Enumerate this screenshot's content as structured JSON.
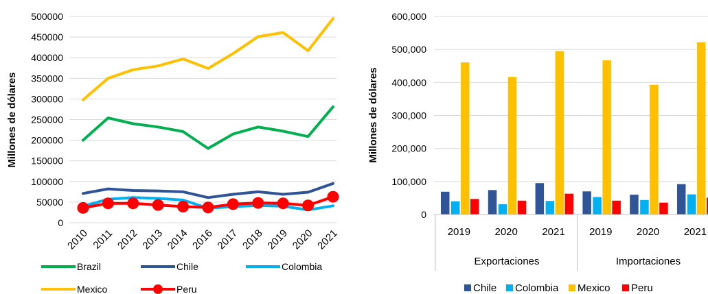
{
  "chart_data": [
    {
      "type": "line",
      "title": "",
      "xlabel": "",
      "ylabel": "Millones de dólares",
      "ylim": [
        0,
        500000
      ],
      "yticks": [
        "0",
        "50000",
        "100000",
        "150000",
        "200000",
        "250000",
        "300000",
        "350000",
        "400000",
        "450000",
        "500000"
      ],
      "categories": [
        "2010",
        "2011",
        "2012",
        "2013",
        "2014",
        "2016",
        "2017",
        "2018",
        "2019",
        "2020",
        "2021"
      ],
      "series": [
        {
          "name": "Brazil",
          "color": "#00B050",
          "values": [
            200000,
            254000,
            240000,
            232000,
            221000,
            180000,
            215000,
            232000,
            222000,
            209000,
            281000
          ]
        },
        {
          "name": "Chile",
          "color": "#2F5597",
          "values": [
            71000,
            82000,
            78000,
            77000,
            75000,
            61000,
            69000,
            75000,
            69000,
            74000,
            95000
          ]
        },
        {
          "name": "Colombia",
          "color": "#00B0F0",
          "values": [
            40000,
            57000,
            61000,
            59000,
            55000,
            35000,
            39000,
            42000,
            40000,
            31000,
            41000
          ]
        },
        {
          "name": "Mexico",
          "color": "#FFC000",
          "values": [
            298000,
            350000,
            371000,
            380000,
            397000,
            374000,
            410000,
            451000,
            461000,
            417000,
            495000
          ]
        },
        {
          "name": "Peru",
          "color": "#FF0000",
          "values": [
            36000,
            47000,
            47000,
            43000,
            39000,
            37000,
            45000,
            48000,
            47000,
            42000,
            63000
          ]
        }
      ],
      "legend": "bottom",
      "grid": true
    },
    {
      "type": "bar",
      "title": "",
      "xlabel": "",
      "ylabel": "Millones de dólares",
      "ylim": [
        0,
        600000
      ],
      "yticks": [
        "0",
        "100,000",
        "200,000",
        "300,000",
        "400,000",
        "500,000",
        "600,000"
      ],
      "groups": [
        "Exportaciones",
        "Importaciones"
      ],
      "categories": [
        "2019",
        "2020",
        "2021",
        "2019",
        "2020",
        "2021"
      ],
      "series": [
        {
          "name": "Chile",
          "color": "#2F5597",
          "values": [
            69000,
            74000,
            95000,
            70000,
            60000,
            92000
          ]
        },
        {
          "name": "Colombia",
          "color": "#00B0F0",
          "values": [
            40000,
            31000,
            41000,
            53000,
            44000,
            61000
          ]
        },
        {
          "name": "Mexico",
          "color": "#FFC000",
          "values": [
            461000,
            417000,
            495000,
            467000,
            393000,
            522000
          ]
        },
        {
          "name": "Peru",
          "color": "#FF0000",
          "values": [
            47000,
            42000,
            63000,
            42000,
            36000,
            51000
          ]
        }
      ],
      "legend": "bottom",
      "grid": true
    }
  ]
}
